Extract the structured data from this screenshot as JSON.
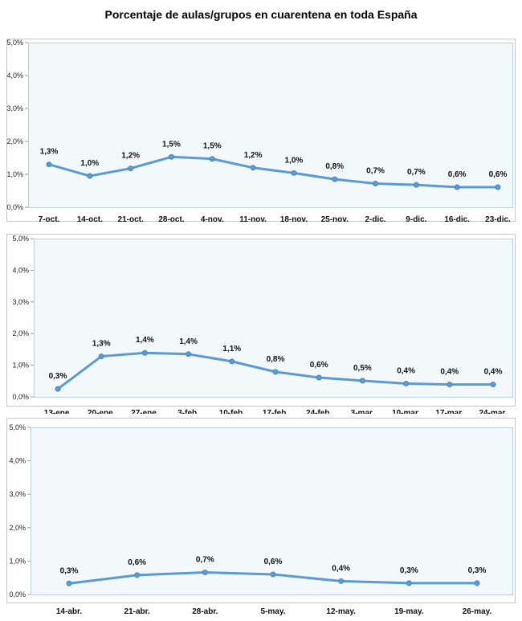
{
  "title": "Porcentaje de aulas/grupos en cuarentena en toda España",
  "chart_data": [
    {
      "type": "line",
      "categories": [
        "7-oct.",
        "14-oct.",
        "21-oct.",
        "28-oct.",
        "4-nov.",
        "11-nov.",
        "18-nov.",
        "25-nov.",
        "2-dic.",
        "9-dic.",
        "16-dic.",
        "23-dic."
      ],
      "values": [
        1.3,
        0.95,
        1.18,
        1.53,
        1.47,
        1.2,
        1.04,
        0.85,
        0.72,
        0.68,
        0.61,
        0.61
      ],
      "labels": [
        "1,3%",
        "1,0%",
        "1,2%",
        "1,5%",
        "1,5%",
        "1,2%",
        "1,0%",
        "0,8%",
        "0,7%",
        "0,7%",
        "0,6%",
        "0,6%"
      ],
      "yticks": [
        "0,0%",
        "1,0%",
        "2,0%",
        "3,0%",
        "4,0%",
        "5,0%"
      ],
      "ylim": [
        0,
        5
      ],
      "grid": false,
      "line_color": "#5b9bd5",
      "plot_bg": "#f3f8fb"
    },
    {
      "type": "line",
      "categories": [
        "13-ene.",
        "20-ene.",
        "27-ene.",
        "3-feb.",
        "10-feb.",
        "17-feb.",
        "24-feb.",
        "3-mar.",
        "10-mar.",
        "17-mar.",
        "24-mar."
      ],
      "values": [
        0.25,
        1.28,
        1.39,
        1.35,
        1.12,
        0.79,
        0.61,
        0.51,
        0.42,
        0.39,
        0.39
      ],
      "labels": [
        "0,3%",
        "1,3%",
        "1,4%",
        "1,4%",
        "1,1%",
        "0,8%",
        "0,6%",
        "0,5%",
        "0,4%",
        "0,4%",
        "0,4%"
      ],
      "yticks": [
        "0,0%",
        "1,0%",
        "2,0%",
        "3,0%",
        "4,0%",
        "5,0%"
      ],
      "ylim": [
        0,
        5
      ],
      "grid": false,
      "line_color": "#5b9bd5",
      "plot_bg": "#f3f8fb"
    },
    {
      "type": "line",
      "categories": [
        "14-abr.",
        "21-abr.",
        "28-abr.",
        "5-may.",
        "12-may.",
        "19-may.",
        "26-may."
      ],
      "values": [
        0.33,
        0.58,
        0.66,
        0.6,
        0.4,
        0.34,
        0.34
      ],
      "labels": [
        "0,3%",
        "0,6%",
        "0,7%",
        "0,6%",
        "0,4%",
        "0,3%",
        "0,3%"
      ],
      "yticks": [
        "0,0%",
        "1,0%",
        "2,0%",
        "3,0%",
        "4,0%",
        "5,0%"
      ],
      "ylim": [
        0,
        5
      ],
      "grid": false,
      "line_color": "#5b9bd5",
      "plot_bg": "#f3f8fb"
    }
  ]
}
